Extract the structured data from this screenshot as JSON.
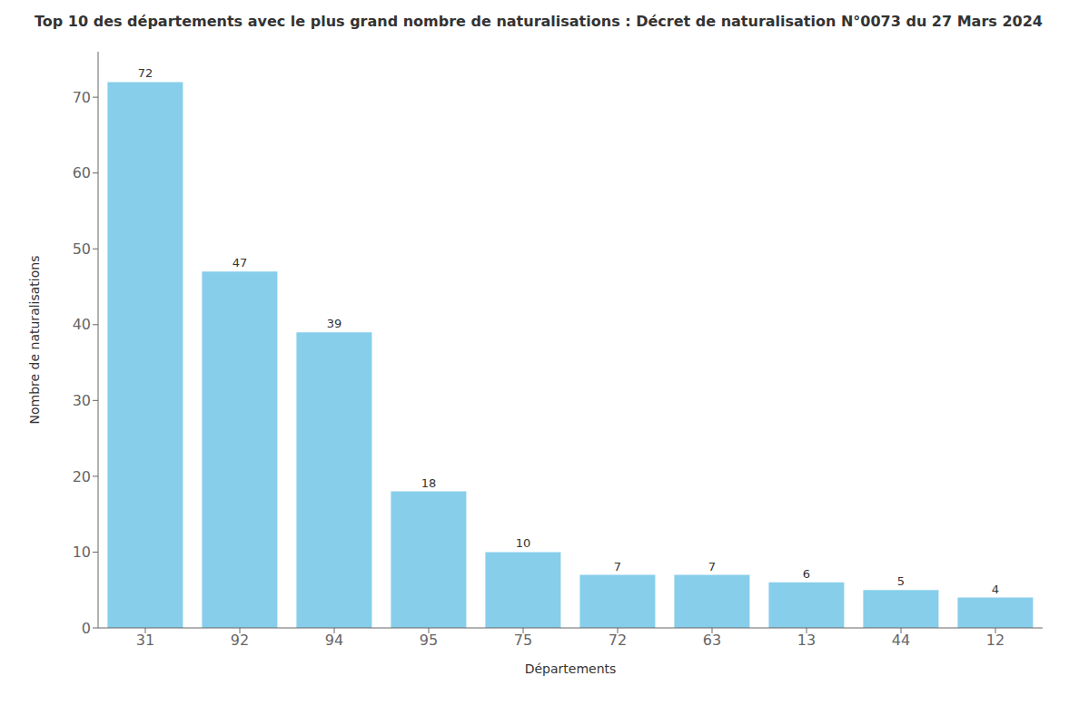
{
  "chart_data": {
    "type": "bar",
    "title": "Top 10 des départements avec le plus grand nombre de naturalisations : Décret de naturalisation N°0073 du 27 Mars 2024",
    "xlabel": "Départements",
    "ylabel": "Nombre de naturalisations",
    "categories": [
      "31",
      "92",
      "94",
      "95",
      "75",
      "72",
      "63",
      "13",
      "44",
      "12"
    ],
    "values": [
      72,
      47,
      39,
      18,
      10,
      7,
      7,
      6,
      5,
      4
    ],
    "color": "#87CEEB",
    "ylim": [
      0,
      76
    ],
    "yticks": [
      0,
      10,
      20,
      30,
      40,
      50,
      60,
      70
    ],
    "grid": false,
    "data_labels": true
  }
}
